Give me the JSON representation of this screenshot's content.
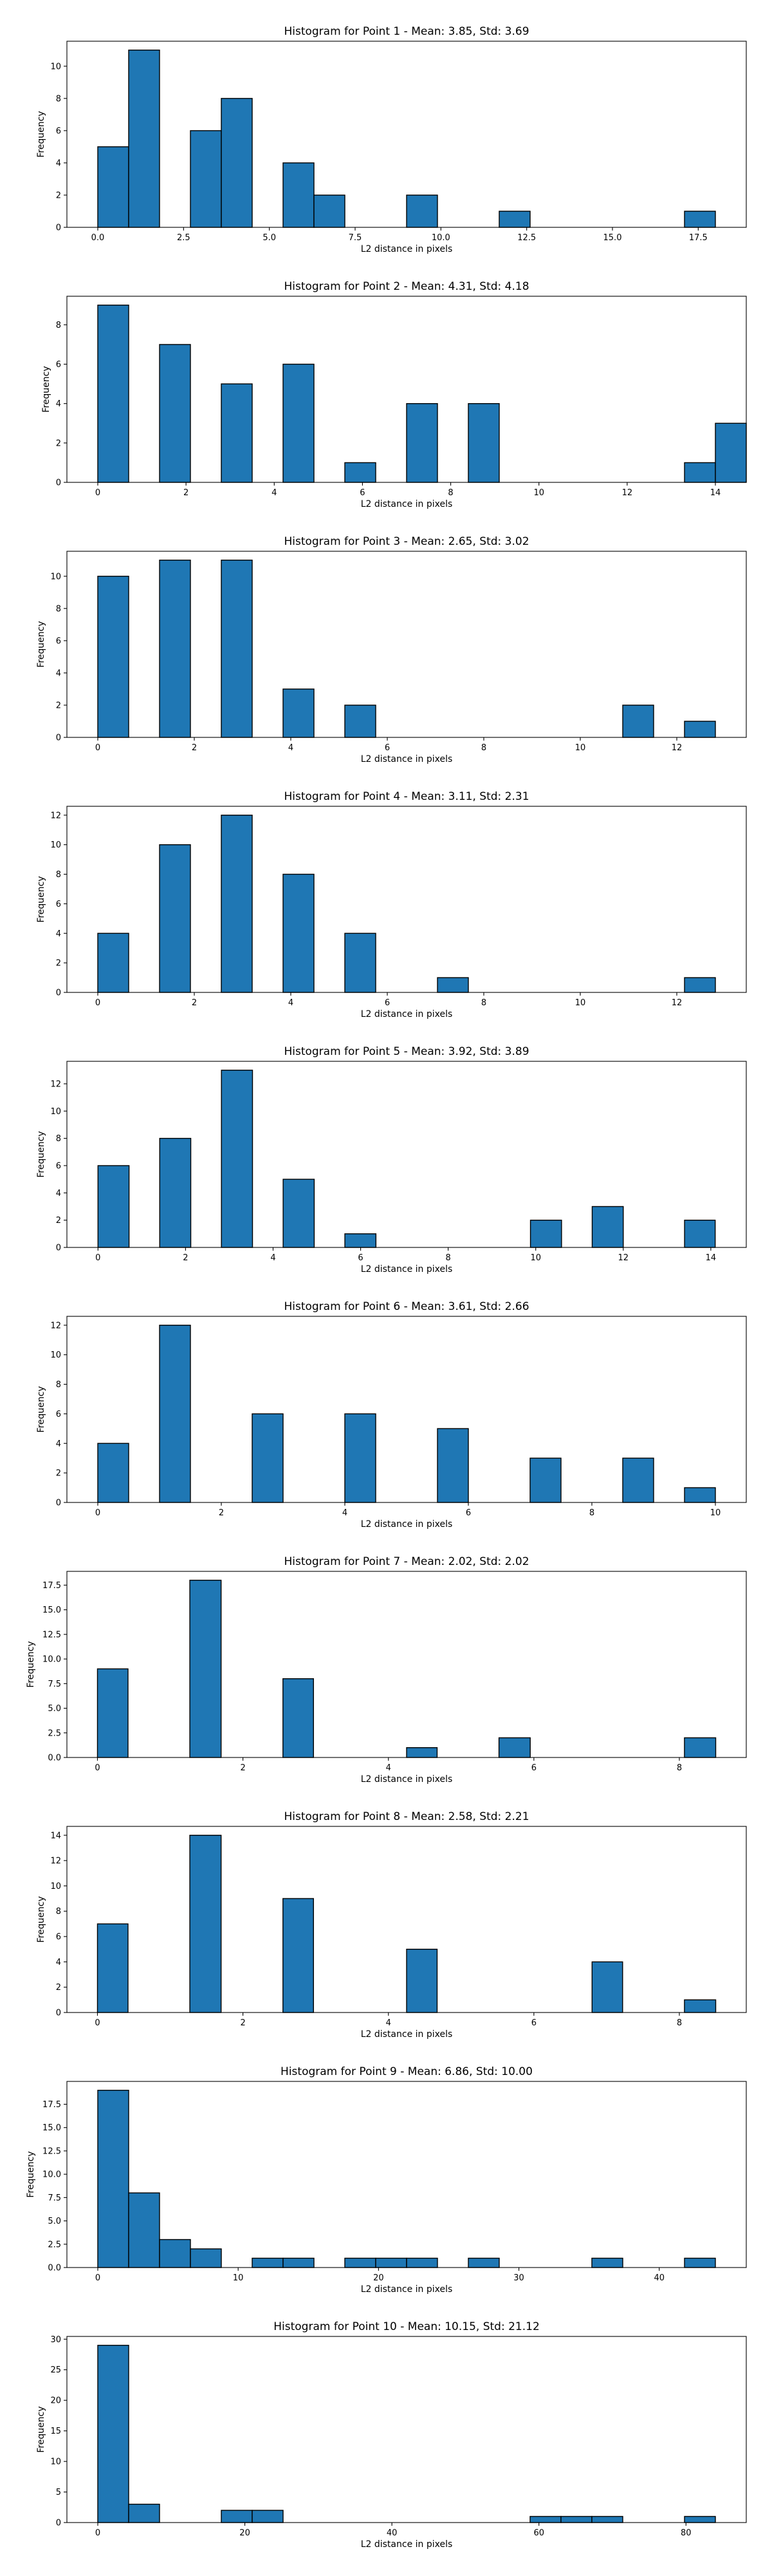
{
  "chart_data": [
    {
      "type": "bar",
      "title": "Histogram for Point 1 - Mean: 3.85, Std: 3.69",
      "xlabel": "L2 distance in pixels",
      "ylabel": "Frequency",
      "xlim": [
        -0.9,
        18.9
      ],
      "ylim": [
        0,
        11.55
      ],
      "xticks": [
        0.0,
        2.5,
        5.0,
        7.5,
        10.0,
        12.5,
        15.0,
        17.5
      ],
      "xtick_labels": [
        "0.0",
        "2.5",
        "5.0",
        "7.5",
        "10.0",
        "12.5",
        "15.0",
        "17.5"
      ],
      "yticks": [
        0,
        2,
        4,
        6,
        8,
        10
      ],
      "ytick_labels": [
        "0",
        "2",
        "4",
        "6",
        "8",
        "10"
      ],
      "bars": [
        {
          "x0": 0.0,
          "x1": 0.9,
          "value": 5
        },
        {
          "x0": 0.9,
          "x1": 1.8,
          "value": 11
        },
        {
          "x0": 2.7,
          "x1": 3.6,
          "value": 6
        },
        {
          "x0": 3.6,
          "x1": 4.5,
          "value": 8
        },
        {
          "x0": 5.4,
          "x1": 6.3,
          "value": 4
        },
        {
          "x0": 6.3,
          "x1": 7.2,
          "value": 2
        },
        {
          "x0": 9.0,
          "x1": 9.9,
          "value": 2
        },
        {
          "x0": 11.7,
          "x1": 12.6,
          "value": 1
        },
        {
          "x0": 17.1,
          "x1": 18.0,
          "value": 1
        }
      ]
    },
    {
      "type": "bar",
      "title": "Histogram for Point 2 - Mean: 4.31, Std: 4.18",
      "xlabel": "L2 distance in pixels",
      "ylabel": "Frequency",
      "xlim": [
        -0.7,
        14.7
      ],
      "ylim": [
        0,
        9.45
      ],
      "xticks": [
        0,
        2,
        4,
        6,
        8,
        10,
        12,
        14
      ],
      "xtick_labels": [
        "0",
        "2",
        "4",
        "6",
        "8",
        "10",
        "12",
        "14"
      ],
      "yticks": [
        0,
        2,
        4,
        6,
        8
      ],
      "ytick_labels": [
        "0",
        "2",
        "4",
        "6",
        "8"
      ],
      "bars": [
        {
          "x0": 0.0,
          "x1": 0.7,
          "value": 9
        },
        {
          "x0": 1.4,
          "x1": 2.1,
          "value": 7
        },
        {
          "x0": 2.8,
          "x1": 3.5,
          "value": 5
        },
        {
          "x0": 4.2,
          "x1": 4.9,
          "value": 6
        },
        {
          "x0": 5.6,
          "x1": 6.3,
          "value": 1
        },
        {
          "x0": 7.0,
          "x1": 7.7,
          "value": 4
        },
        {
          "x0": 8.4,
          "x1": 9.1,
          "value": 4
        },
        {
          "x0": 13.3,
          "x1": 14.0,
          "value": 1
        },
        {
          "x0": 14.0,
          "x1": 14.7,
          "value": 3
        }
      ]
    },
    {
      "type": "bar",
      "title": "Histogram for Point 3 - Mean: 2.65, Std: 3.02",
      "xlabel": "L2 distance in pixels",
      "ylabel": "Frequency",
      "xlim": [
        -0.64,
        13.44
      ],
      "ylim": [
        0,
        11.55
      ],
      "xticks": [
        0,
        2,
        4,
        6,
        8,
        10,
        12
      ],
      "xtick_labels": [
        "0",
        "2",
        "4",
        "6",
        "8",
        "10",
        "12"
      ],
      "yticks": [
        0,
        2,
        4,
        6,
        8,
        10
      ],
      "ytick_labels": [
        "0",
        "2",
        "4",
        "6",
        "8",
        "10"
      ],
      "bars": [
        {
          "x0": 0.0,
          "x1": 0.64,
          "value": 10
        },
        {
          "x0": 1.28,
          "x1": 1.92,
          "value": 11
        },
        {
          "x0": 2.56,
          "x1": 3.2,
          "value": 11
        },
        {
          "x0": 3.84,
          "x1": 4.48,
          "value": 3
        },
        {
          "x0": 5.12,
          "x1": 5.76,
          "value": 2
        },
        {
          "x0": 10.88,
          "x1": 11.52,
          "value": 2
        },
        {
          "x0": 12.16,
          "x1": 12.8,
          "value": 1
        }
      ]
    },
    {
      "type": "bar",
      "title": "Histogram for Point 4 - Mean: 3.11, Std: 2.31",
      "xlabel": "L2 distance in pixels",
      "ylabel": "Frequency",
      "xlim": [
        -0.64,
        13.44
      ],
      "ylim": [
        0,
        12.6
      ],
      "xticks": [
        0,
        2,
        4,
        6,
        8,
        10,
        12
      ],
      "xtick_labels": [
        "0",
        "2",
        "4",
        "6",
        "8",
        "10",
        "12"
      ],
      "yticks": [
        0,
        2,
        4,
        6,
        8,
        10,
        12
      ],
      "ytick_labels": [
        "0",
        "2",
        "4",
        "6",
        "8",
        "10",
        "12"
      ],
      "bars": [
        {
          "x0": 0.0,
          "x1": 0.64,
          "value": 4
        },
        {
          "x0": 1.28,
          "x1": 1.92,
          "value": 10
        },
        {
          "x0": 2.56,
          "x1": 3.2,
          "value": 12
        },
        {
          "x0": 3.84,
          "x1": 4.48,
          "value": 8
        },
        {
          "x0": 5.12,
          "x1": 5.76,
          "value": 4
        },
        {
          "x0": 7.04,
          "x1": 7.68,
          "value": 1
        },
        {
          "x0": 12.16,
          "x1": 12.8,
          "value": 1
        }
      ]
    },
    {
      "type": "bar",
      "title": "Histogram for Point 5 - Mean: 3.92, Std: 3.89",
      "xlabel": "L2 distance in pixels",
      "ylabel": "Frequency",
      "xlim": [
        -0.71,
        14.81
      ],
      "ylim": [
        0,
        13.65
      ],
      "xticks": [
        0,
        2,
        4,
        6,
        8,
        10,
        12,
        14
      ],
      "xtick_labels": [
        "0",
        "2",
        "4",
        "6",
        "8",
        "10",
        "12",
        "14"
      ],
      "yticks": [
        0,
        2,
        4,
        6,
        8,
        10,
        12
      ],
      "ytick_labels": [
        "0",
        "2",
        "4",
        "6",
        "8",
        "10",
        "12"
      ],
      "bars": [
        {
          "x0": 0.0,
          "x1": 0.71,
          "value": 6
        },
        {
          "x0": 1.41,
          "x1": 2.12,
          "value": 8
        },
        {
          "x0": 2.82,
          "x1": 3.53,
          "value": 13
        },
        {
          "x0": 4.23,
          "x1": 4.94,
          "value": 5
        },
        {
          "x0": 5.64,
          "x1": 6.35,
          "value": 1
        },
        {
          "x0": 9.88,
          "x1": 10.59,
          "value": 2
        },
        {
          "x0": 11.29,
          "x1": 12.0,
          "value": 3
        },
        {
          "x0": 13.4,
          "x1": 14.1,
          "value": 2
        }
      ]
    },
    {
      "type": "bar",
      "title": "Histogram for Point 6 - Mean: 3.61, Std: 2.66",
      "xlabel": "L2 distance in pixels",
      "ylabel": "Frequency",
      "xlim": [
        -0.5,
        10.5
      ],
      "ylim": [
        0,
        12.6
      ],
      "xticks": [
        0,
        2,
        4,
        6,
        8,
        10
      ],
      "xtick_labels": [
        "0",
        "2",
        "4",
        "6",
        "8",
        "10"
      ],
      "yticks": [
        0,
        2,
        4,
        6,
        8,
        10,
        12
      ],
      "ytick_labels": [
        "0",
        "2",
        "4",
        "6",
        "8",
        "10",
        "12"
      ],
      "bars": [
        {
          "x0": 0.0,
          "x1": 0.5,
          "value": 4
        },
        {
          "x0": 1.0,
          "x1": 1.5,
          "value": 12
        },
        {
          "x0": 2.5,
          "x1": 3.0,
          "value": 6
        },
        {
          "x0": 4.0,
          "x1": 4.5,
          "value": 6
        },
        {
          "x0": 5.5,
          "x1": 6.0,
          "value": 5
        },
        {
          "x0": 7.0,
          "x1": 7.5,
          "value": 3
        },
        {
          "x0": 8.5,
          "x1": 9.0,
          "value": 3
        },
        {
          "x0": 9.5,
          "x1": 10.0,
          "value": 1
        }
      ]
    },
    {
      "type": "bar",
      "title": "Histogram for Point 7 - Mean: 2.02, Std: 2.02",
      "xlabel": "L2 distance in pixels",
      "ylabel": "Frequency",
      "xlim": [
        -0.42,
        8.92
      ],
      "ylim": [
        0,
        18.9
      ],
      "xticks": [
        0,
        2,
        4,
        6,
        8
      ],
      "xtick_labels": [
        "0",
        "2",
        "4",
        "6",
        "8"
      ],
      "yticks": [
        0.0,
        2.5,
        5.0,
        7.5,
        10.0,
        12.5,
        15.0,
        17.5
      ],
      "ytick_labels": [
        "0.0",
        "2.5",
        "5.0",
        "7.5",
        "10.0",
        "12.5",
        "15.0",
        "17.5"
      ],
      "bars": [
        {
          "x0": 0.0,
          "x1": 0.42,
          "value": 9
        },
        {
          "x0": 1.27,
          "x1": 1.7,
          "value": 18
        },
        {
          "x0": 2.55,
          "x1": 2.97,
          "value": 8
        },
        {
          "x0": 4.25,
          "x1": 4.67,
          "value": 1
        },
        {
          "x0": 5.52,
          "x1": 5.95,
          "value": 2
        },
        {
          "x0": 8.07,
          "x1": 8.5,
          "value": 2
        }
      ]
    },
    {
      "type": "bar",
      "title": "Histogram for Point 8 - Mean: 2.58, Std: 2.21",
      "xlabel": "L2 distance in pixels",
      "ylabel": "Frequency",
      "xlim": [
        -0.42,
        8.92
      ],
      "ylim": [
        0,
        14.7
      ],
      "xticks": [
        0,
        2,
        4,
        6,
        8
      ],
      "xtick_labels": [
        "0",
        "2",
        "4",
        "6",
        "8"
      ],
      "yticks": [
        0,
        2,
        4,
        6,
        8,
        10,
        12,
        14
      ],
      "ytick_labels": [
        "0",
        "2",
        "4",
        "6",
        "8",
        "10",
        "12",
        "14"
      ],
      "bars": [
        {
          "x0": 0.0,
          "x1": 0.42,
          "value": 7
        },
        {
          "x0": 1.27,
          "x1": 1.7,
          "value": 14
        },
        {
          "x0": 2.55,
          "x1": 2.97,
          "value": 9
        },
        {
          "x0": 4.25,
          "x1": 4.67,
          "value": 5
        },
        {
          "x0": 6.8,
          "x1": 7.22,
          "value": 4
        },
        {
          "x0": 8.07,
          "x1": 8.5,
          "value": 1
        }
      ]
    },
    {
      "type": "bar",
      "title": "Histogram for Point 9 - Mean: 6.86, Std: 10.00",
      "xlabel": "L2 distance in pixels",
      "ylabel": "Frequency",
      "xlim": [
        -2.2,
        46.2
      ],
      "ylim": [
        0,
        19.95
      ],
      "xticks": [
        0,
        10,
        20,
        30,
        40
      ],
      "xtick_labels": [
        "0",
        "10",
        "20",
        "30",
        "40"
      ],
      "yticks": [
        0.0,
        2.5,
        5.0,
        7.5,
        10.0,
        12.5,
        15.0,
        17.5
      ],
      "ytick_labels": [
        "0.0",
        "2.5",
        "5.0",
        "7.5",
        "10.0",
        "12.5",
        "15.0",
        "17.5"
      ],
      "bars": [
        {
          "x0": 0.0,
          "x1": 2.2,
          "value": 19
        },
        {
          "x0": 2.2,
          "x1": 4.4,
          "value": 8
        },
        {
          "x0": 4.4,
          "x1": 6.6,
          "value": 3
        },
        {
          "x0": 6.6,
          "x1": 8.8,
          "value": 2
        },
        {
          "x0": 11.0,
          "x1": 13.2,
          "value": 1
        },
        {
          "x0": 13.2,
          "x1": 15.4,
          "value": 1
        },
        {
          "x0": 17.6,
          "x1": 19.8,
          "value": 1
        },
        {
          "x0": 19.8,
          "x1": 22.0,
          "value": 1
        },
        {
          "x0": 22.0,
          "x1": 24.2,
          "value": 1
        },
        {
          "x0": 26.4,
          "x1": 28.6,
          "value": 1
        },
        {
          "x0": 35.2,
          "x1": 37.4,
          "value": 1
        },
        {
          "x0": 41.8,
          "x1": 44.0,
          "value": 1
        }
      ]
    },
    {
      "type": "bar",
      "title": "Histogram for Point 10 - Mean: 10.15, Std: 21.12",
      "xlabel": "L2 distance in pixels",
      "ylabel": "Frequency",
      "xlim": [
        -4.2,
        88.2
      ],
      "ylim": [
        0,
        30.45
      ],
      "xticks": [
        0,
        20,
        40,
        60,
        80
      ],
      "xtick_labels": [
        "0",
        "20",
        "40",
        "60",
        "80"
      ],
      "yticks": [
        0,
        5,
        10,
        15,
        20,
        25,
        30
      ],
      "ytick_labels": [
        "0",
        "5",
        "10",
        "15",
        "20",
        "25",
        "30"
      ],
      "bars": [
        {
          "x0": 0.0,
          "x1": 4.2,
          "value": 29
        },
        {
          "x0": 4.2,
          "x1": 8.4,
          "value": 3
        },
        {
          "x0": 16.8,
          "x1": 21.0,
          "value": 2
        },
        {
          "x0": 21.0,
          "x1": 25.2,
          "value": 2
        },
        {
          "x0": 58.8,
          "x1": 63.0,
          "value": 1
        },
        {
          "x0": 63.0,
          "x1": 67.2,
          "value": 1
        },
        {
          "x0": 67.2,
          "x1": 71.4,
          "value": 1
        },
        {
          "x0": 79.8,
          "x1": 84.0,
          "value": 1
        }
      ]
    }
  ],
  "colors": {
    "bar_fill": "#1f77b4",
    "bar_edge": "#000000",
    "axis": "#000000",
    "text": "#000000",
    "background": "#ffffff"
  }
}
